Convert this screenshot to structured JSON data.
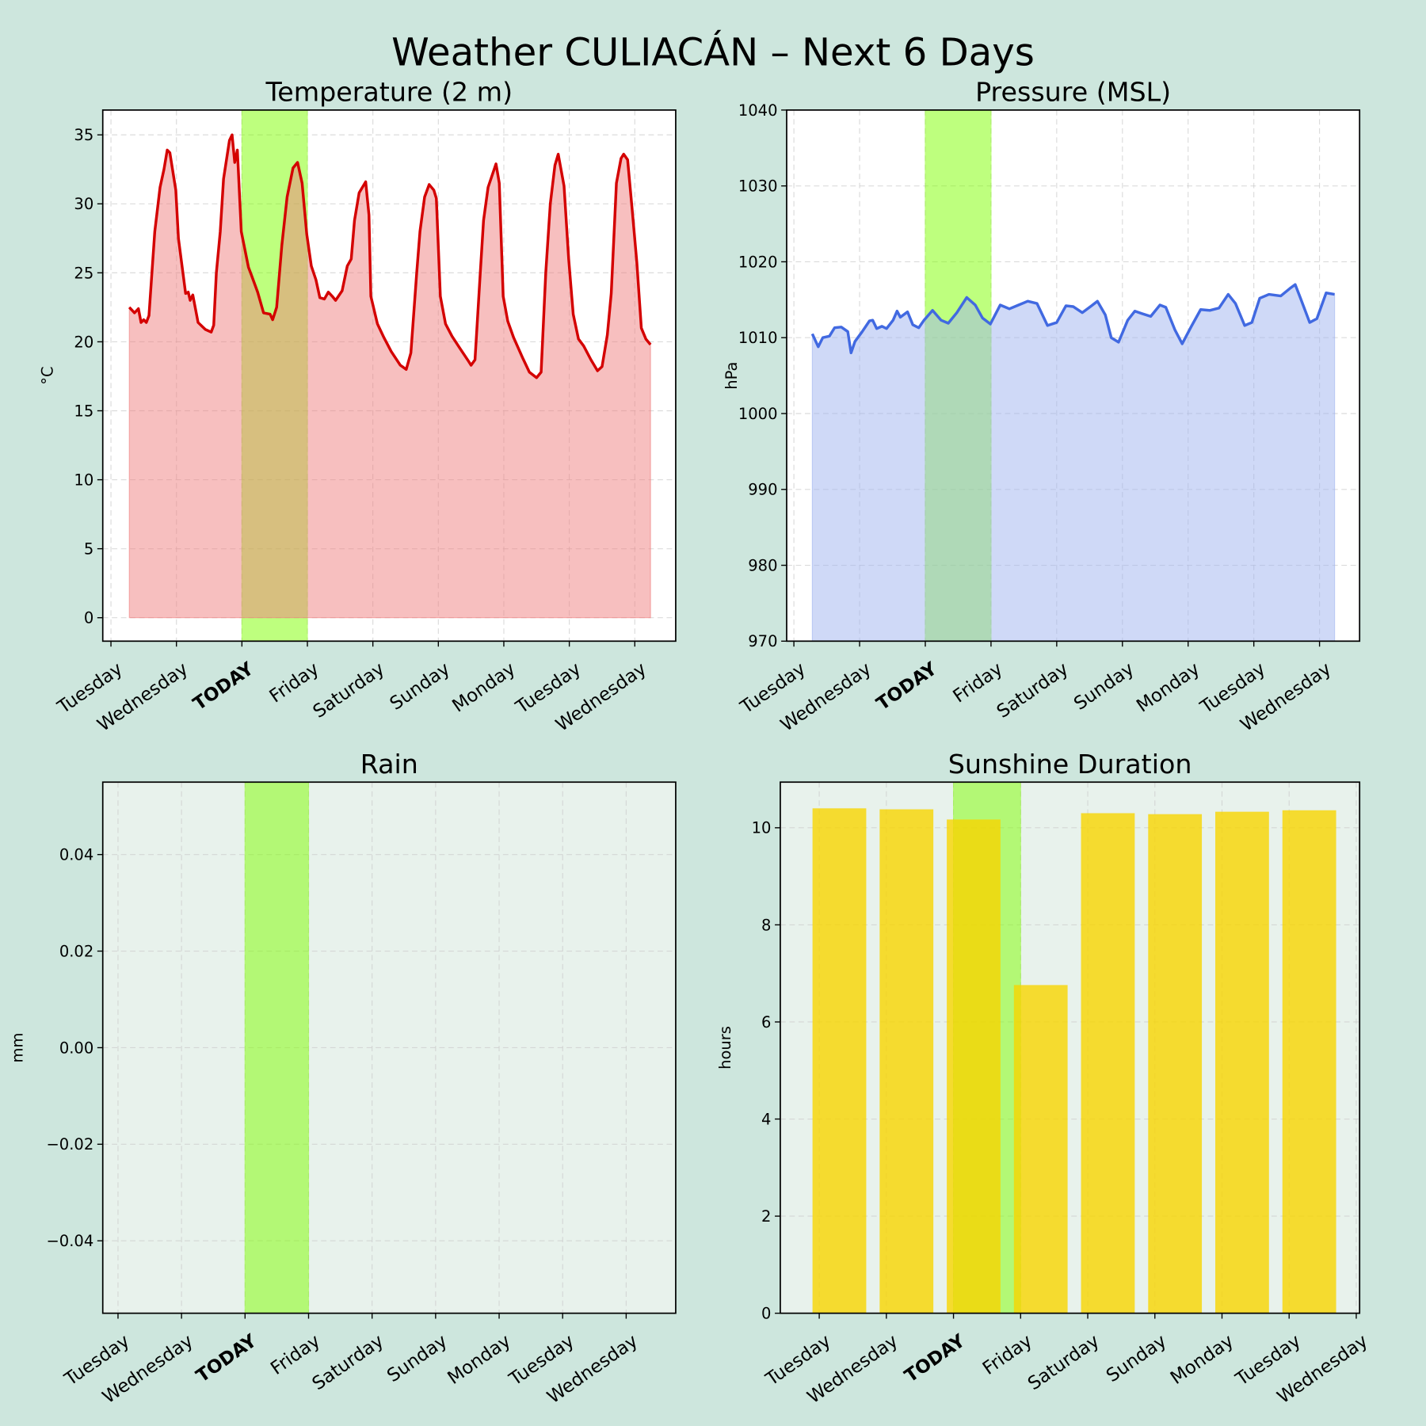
{
  "title": "Weather CULIACÁN – Next 6 Days",
  "colors": {
    "background": "#cde6dd",
    "today": "#5cbf00",
    "today_band": "#7fff00",
    "temp": "#d40000",
    "temp_fill": "#f08080",
    "pressure": "#4169e1",
    "pressure_fill": "#a0b4f0",
    "sun": "#f8d400",
    "panel_light": "#e8f2ec"
  },
  "chart_data": [
    {
      "type": "area",
      "title": "Temperature (2 m)",
      "ylabel": "°C",
      "xlabel": "",
      "x_unit": "days from first Tuesday",
      "xlim": [
        -0.125,
        8.625
      ],
      "ylim": [
        -1.7,
        36.8
      ],
      "yticks": [
        0,
        5,
        10,
        15,
        20,
        25,
        30,
        35
      ],
      "ytick_labels": [
        "0",
        "5",
        "10",
        "15",
        "20",
        "25",
        "30",
        "35"
      ],
      "xtick_labels": [
        "Tuesday",
        "Wednesday",
        "TODAY",
        "Friday",
        "Saturday",
        "Sunday",
        "Monday",
        "Tuesday",
        "Wednesday"
      ],
      "today_label": "TODAY",
      "today_range": [
        2,
        3
      ],
      "grid": true,
      "x": [
        0.28,
        0.36,
        0.42,
        0.46,
        0.5,
        0.54,
        0.58,
        0.67,
        0.75,
        0.81,
        0.86,
        0.9,
        0.99,
        1.03,
        1.14,
        1.18,
        1.21,
        1.25,
        1.33,
        1.44,
        1.53,
        1.57,
        1.61,
        1.67,
        1.72,
        1.81,
        1.85,
        1.89,
        1.93,
        1.99,
        2.1,
        2.14,
        2.24,
        2.33,
        2.43,
        2.47,
        2.53,
        2.61,
        2.69,
        2.78,
        2.85,
        2.92,
        2.99,
        3.06,
        3.13,
        3.19,
        3.26,
        3.32,
        3.38,
        3.43,
        3.53,
        3.61,
        3.67,
        3.72,
        3.79,
        3.89,
        3.94,
        3.97,
        4.07,
        4.17,
        4.28,
        4.42,
        4.51,
        4.58,
        4.67,
        4.72,
        4.79,
        4.86,
        4.93,
        4.97,
        5.03,
        5.11,
        5.21,
        5.32,
        5.46,
        5.5,
        5.56,
        5.64,
        5.69,
        5.76,
        5.88,
        5.93,
        5.99,
        6.06,
        6.15,
        6.29,
        6.39,
        6.5,
        6.57,
        6.64,
        6.71,
        6.78,
        6.83,
        6.92,
        6.99,
        7.06,
        7.14,
        7.22,
        7.33,
        7.43,
        7.5,
        7.58,
        7.64,
        7.72,
        7.79,
        7.83,
        7.89,
        7.96,
        8.03,
        8.1,
        8.17,
        8.24
      ],
      "values": [
        22.5,
        22.1,
        22.4,
        21.4,
        21.6,
        21.4,
        21.9,
        28,
        31.2,
        32.5,
        33.9,
        33.7,
        31,
        27.5,
        23.5,
        23.6,
        23,
        23.4,
        21.4,
        20.9,
        20.7,
        21.2,
        25,
        28,
        31.8,
        34.6,
        35,
        33,
        33.9,
        28,
        25.4,
        24.9,
        23.6,
        22.1,
        22,
        21.6,
        22.5,
        27,
        30.5,
        32.6,
        33,
        31.5,
        27.8,
        25.5,
        24.5,
        23.2,
        23.1,
        23.6,
        23.3,
        23,
        23.7,
        25.5,
        26,
        28.8,
        30.8,
        31.6,
        29.2,
        23.3,
        21.3,
        20.3,
        19.3,
        18.3,
        18,
        19.2,
        25,
        28,
        30.5,
        31.4,
        31,
        30.4,
        23.3,
        21.3,
        20.4,
        19.6,
        18.6,
        18.3,
        18.7,
        25,
        28.8,
        31.2,
        32.9,
        31.5,
        23.3,
        21.5,
        20.3,
        18.8,
        17.8,
        17.4,
        17.8,
        25,
        30,
        32.8,
        33.6,
        31.3,
        26,
        22,
        20.2,
        19.7,
        18.7,
        17.9,
        18.2,
        20.5,
        23.5,
        31.5,
        33.3,
        33.6,
        33.2,
        29.6,
        25.8,
        21,
        20.2,
        19.8
      ]
    },
    {
      "type": "area",
      "title": "Pressure (MSL)",
      "ylabel": "hPa",
      "xlabel": "",
      "xlim": [
        -0.11,
        8.61
      ],
      "ylim": [
        970,
        1040
      ],
      "yticks": [
        970,
        980,
        990,
        1000,
        1010,
        1020,
        1030,
        1040
      ],
      "ytick_labels": [
        "970",
        "980",
        "990",
        "1000",
        "1010",
        "1020",
        "1030",
        "1040"
      ],
      "xtick_labels": [
        "Tuesday",
        "Wednesday",
        "TODAY",
        "Friday",
        "Saturday",
        "Sunday",
        "Monday",
        "Tuesday",
        "Wednesday"
      ],
      "today_label": "TODAY",
      "today_range": [
        2,
        3
      ],
      "grid": true,
      "x": [
        0.28,
        0.37,
        0.44,
        0.54,
        0.62,
        0.72,
        0.82,
        0.87,
        0.93,
        1.04,
        1.15,
        1.2,
        1.26,
        1.34,
        1.41,
        1.51,
        1.57,
        1.62,
        1.73,
        1.81,
        1.9,
        1.98,
        2.11,
        2.24,
        2.35,
        2.48,
        2.63,
        2.76,
        2.87,
        2.99,
        3.14,
        3.28,
        3.42,
        3.56,
        3.7,
        3.86,
        4.0,
        4.14,
        4.25,
        4.39,
        4.53,
        4.62,
        4.74,
        4.83,
        4.94,
        5.08,
        5.19,
        5.29,
        5.43,
        5.57,
        5.66,
        5.8,
        5.91,
        6.05,
        6.19,
        6.33,
        6.47,
        6.61,
        6.72,
        6.86,
        6.97,
        7.09,
        7.23,
        7.41,
        7.55,
        7.63,
        7.71,
        7.85,
        7.96,
        8.1,
        8.23
      ],
      "values": [
        1010.5,
        1008.8,
        1010,
        1010.2,
        1011.3,
        1011.4,
        1010.8,
        1008,
        1009.5,
        1010.8,
        1012.2,
        1012.3,
        1011.2,
        1011.5,
        1011.2,
        1012.3,
        1013.5,
        1012.7,
        1013.4,
        1011.7,
        1011.3,
        1012.3,
        1013.6,
        1012.3,
        1011.9,
        1013.3,
        1015.3,
        1014.3,
        1012.6,
        1011.8,
        1014.3,
        1013.8,
        1014.3,
        1014.8,
        1014.5,
        1011.6,
        1012,
        1014.2,
        1014.1,
        1013.3,
        1014.2,
        1014.8,
        1013,
        1010,
        1009.4,
        1012.3,
        1013.5,
        1013.2,
        1012.8,
        1014.3,
        1014,
        1011,
        1009.2,
        1011.5,
        1013.7,
        1013.6,
        1013.9,
        1015.7,
        1014.5,
        1011.6,
        1012,
        1015.2,
        1015.7,
        1015.5,
        1016.5,
        1017,
        1015.2,
        1012,
        1012.5,
        1015.9,
        1015.7
      ]
    },
    {
      "type": "bar",
      "title": "Rain",
      "ylabel": "mm",
      "xlabel": "",
      "xlim": [
        -0.24,
        8.78
      ],
      "ylim": [
        -0.055,
        0.055
      ],
      "yticks": [
        -0.04,
        -0.02,
        0,
        0.02,
        0.04
      ],
      "ytick_labels": [
        "−0.04",
        "−0.02",
        "0.00",
        "0.02",
        "0.04"
      ],
      "xtick_labels": [
        "Tuesday",
        "Wednesday",
        "TODAY",
        "Friday",
        "Saturday",
        "Sunday",
        "Monday",
        "Tuesday",
        "Wednesday"
      ],
      "today_label": "TODAY",
      "today_range": [
        2,
        3
      ],
      "grid": true,
      "values": [
        0,
        0,
        0,
        0,
        0,
        0,
        0,
        0
      ]
    },
    {
      "type": "bar",
      "title": "Sunshine Duration",
      "ylabel": "hours",
      "xlabel": "",
      "xlim": [
        -0.58,
        8.05
      ],
      "ylim": [
        0,
        10.94
      ],
      "yticks": [
        0,
        2,
        4,
        6,
        8,
        10
      ],
      "ytick_labels": [
        "0",
        "2",
        "4",
        "6",
        "8",
        "10"
      ],
      "xtick_labels": [
        "Tuesday",
        "Wednesday",
        "TODAY",
        "Friday",
        "Saturday",
        "Sunday",
        "Monday",
        "Tuesday",
        "Wednesday"
      ],
      "today_label": "TODAY",
      "today_range": [
        2,
        3
      ],
      "grid": true,
      "bar_x": [
        0.3,
        1.3,
        2.3,
        3.3,
        4.3,
        5.3,
        6.3,
        7.3
      ],
      "values": [
        10.4,
        10.38,
        10.17,
        6.76,
        10.3,
        10.28,
        10.33,
        10.36
      ]
    }
  ]
}
